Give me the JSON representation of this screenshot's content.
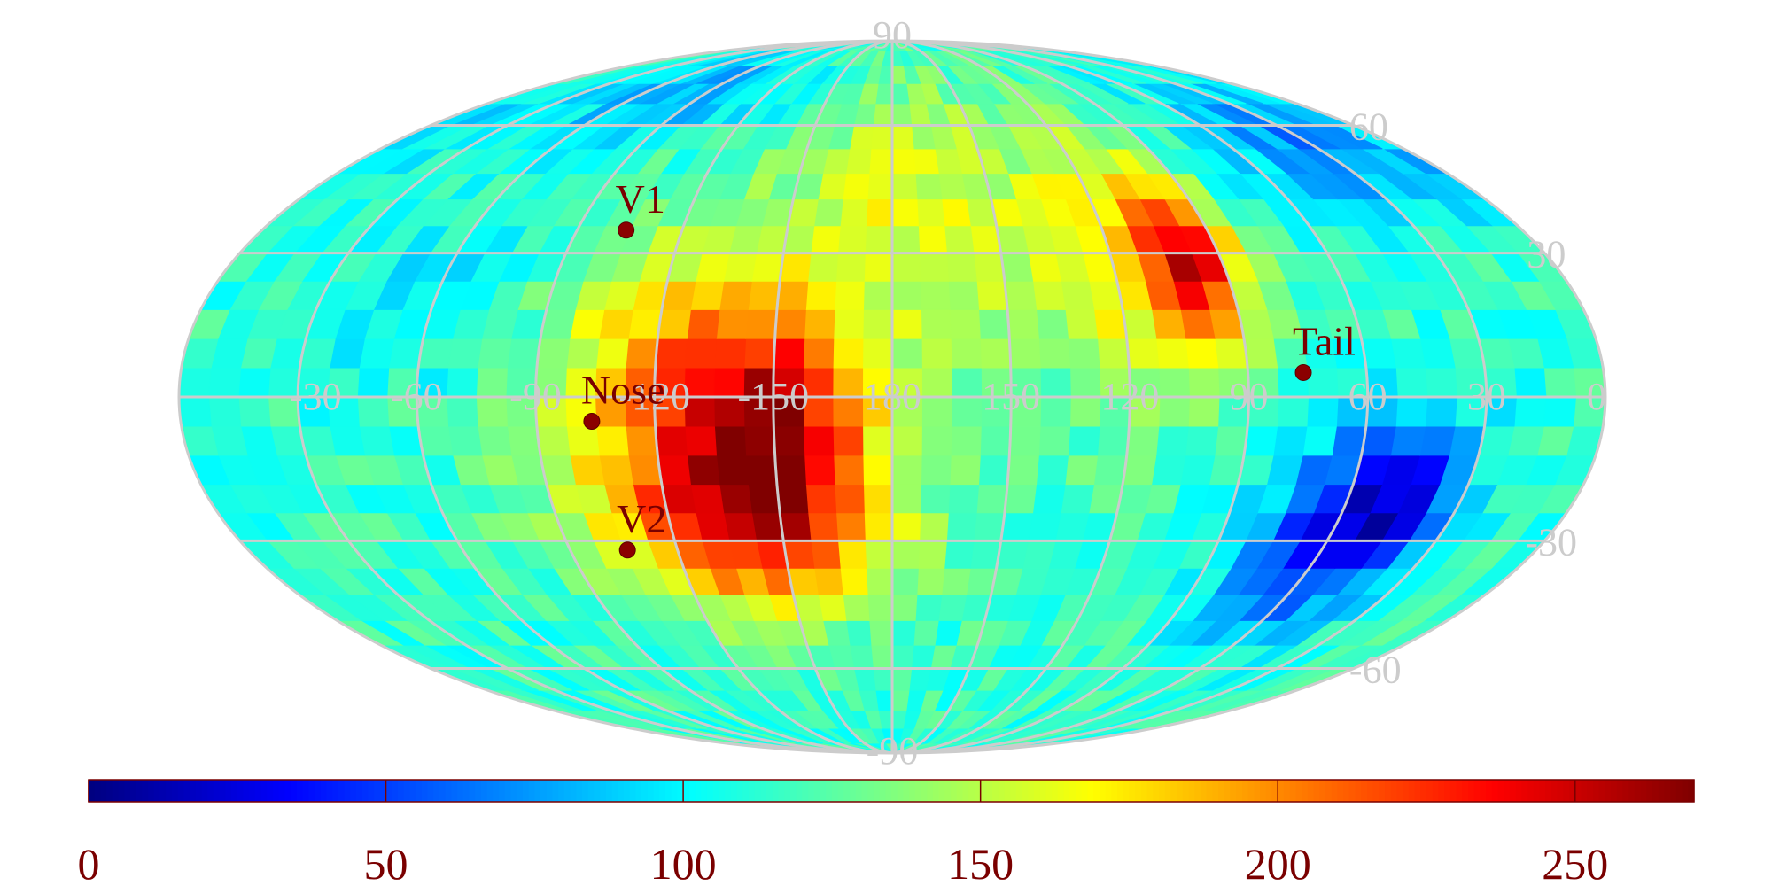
{
  "chart_data": {
    "type": "heatmap",
    "projection": "mollweide",
    "colormap": "jet",
    "color_range": [
      0,
      270
    ],
    "longitude_labels": [
      "-30",
      "-60",
      "-90",
      "-120",
      "-150",
      "180",
      "150",
      "120",
      "90",
      "60",
      "30",
      "0"
    ],
    "latitude_labels": {
      "north_pole": "90",
      "south_pole": "-90",
      "north": [
        "60",
        "30"
      ],
      "south": [
        "-30",
        "-60"
      ]
    },
    "markers": [
      {
        "label": "V1",
        "lon": -104,
        "lat": 35
      },
      {
        "label": "Nose",
        "lon": -104,
        "lat": -5
      },
      {
        "label": "V2",
        "lon": -106,
        "lat": -32
      },
      {
        "label": "Tail",
        "lon": 76,
        "lat": 5
      }
    ],
    "colorbar": {
      "ticks": [
        {
          "value": 0,
          "label": "0"
        },
        {
          "value": 50,
          "label": "50"
        },
        {
          "value": 100,
          "label": "100"
        },
        {
          "value": 150,
          "label": "150"
        },
        {
          "value": 200,
          "label": "200"
        },
        {
          "value": 250,
          "label": "250"
        }
      ]
    },
    "regions": [
      {
        "lon": -150,
        "lat": -5,
        "value": 220,
        "sigma_lon": 18,
        "sigma_lat": 18
      },
      {
        "lon": -140,
        "lat": -28,
        "value": 200,
        "sigma_lon": 28,
        "sigma_lat": 14
      },
      {
        "lon": -120,
        "lat": 5,
        "value": 180,
        "sigma_lon": 22,
        "sigma_lat": 22
      },
      {
        "lon": 98,
        "lat": 28,
        "value": 215,
        "sigma_lon": 9,
        "sigma_lat": 12
      },
      {
        "lon": 115,
        "lat": 30,
        "value": 170,
        "sigma_lon": 18,
        "sigma_lat": 22
      },
      {
        "lon": 175,
        "lat": 40,
        "value": 160,
        "sigma_lon": 28,
        "sigma_lat": 25
      },
      {
        "lon": 60,
        "lat": -30,
        "value": 45,
        "sigma_lon": 16,
        "sigma_lat": 16
      },
      {
        "lon": 45,
        "lat": -20,
        "value": 60,
        "sigma_lon": 12,
        "sigma_lat": 12
      },
      {
        "lon": 30,
        "lat": 55,
        "value": 70,
        "sigma_lon": 28,
        "sigma_lat": 12
      },
      {
        "lon": -80,
        "lat": 70,
        "value": 80,
        "sigma_lon": 40,
        "sigma_lat": 10
      },
      {
        "lon": -60,
        "lat": 20,
        "value": 95,
        "sigma_lon": 20,
        "sigma_lat": 12
      }
    ],
    "background_value": 115
  }
}
